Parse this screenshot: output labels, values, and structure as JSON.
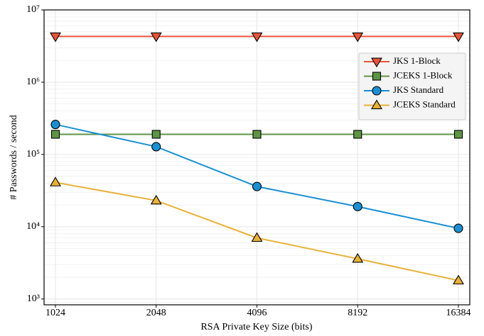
{
  "chart_data": {
    "type": "line",
    "x_label": "RSA Private Key Size (bits)",
    "y_label": "# Passwords / second",
    "categories": [
      "1024",
      "2048",
      "4096",
      "8192",
      "16384"
    ],
    "log_y": true,
    "ylim": [
      830,
      10000000
    ],
    "yticks": [
      {
        "value": 1000,
        "label": "10³"
      },
      {
        "value": 10000,
        "label": "10⁴"
      },
      {
        "value": 100000,
        "label": "10⁵"
      },
      {
        "value": 1000000,
        "label": "10⁶"
      },
      {
        "value": 10000000,
        "label": "10⁷"
      }
    ],
    "grid": true,
    "legend": "upper right",
    "series": [
      {
        "name": "JKS 1-Block",
        "color": "#e8553a",
        "marker": "v",
        "values": [
          4300000,
          4300000,
          4300000,
          4300000,
          4300000
        ]
      },
      {
        "name": "JCEKS 1-Block",
        "color": "#5e9445",
        "marker": "s",
        "values": [
          190000,
          190000,
          190000,
          190000,
          190000
        ]
      },
      {
        "name": "JKS Standard",
        "color": "#1b8fd2",
        "marker": "o",
        "values": [
          260000,
          128000,
          36000,
          19000,
          9500
        ]
      },
      {
        "name": "JCEKS Standard",
        "color": "#e8b13a",
        "marker": "^",
        "values": [
          41000,
          23000,
          7000,
          3600,
          1800
        ]
      }
    ]
  }
}
